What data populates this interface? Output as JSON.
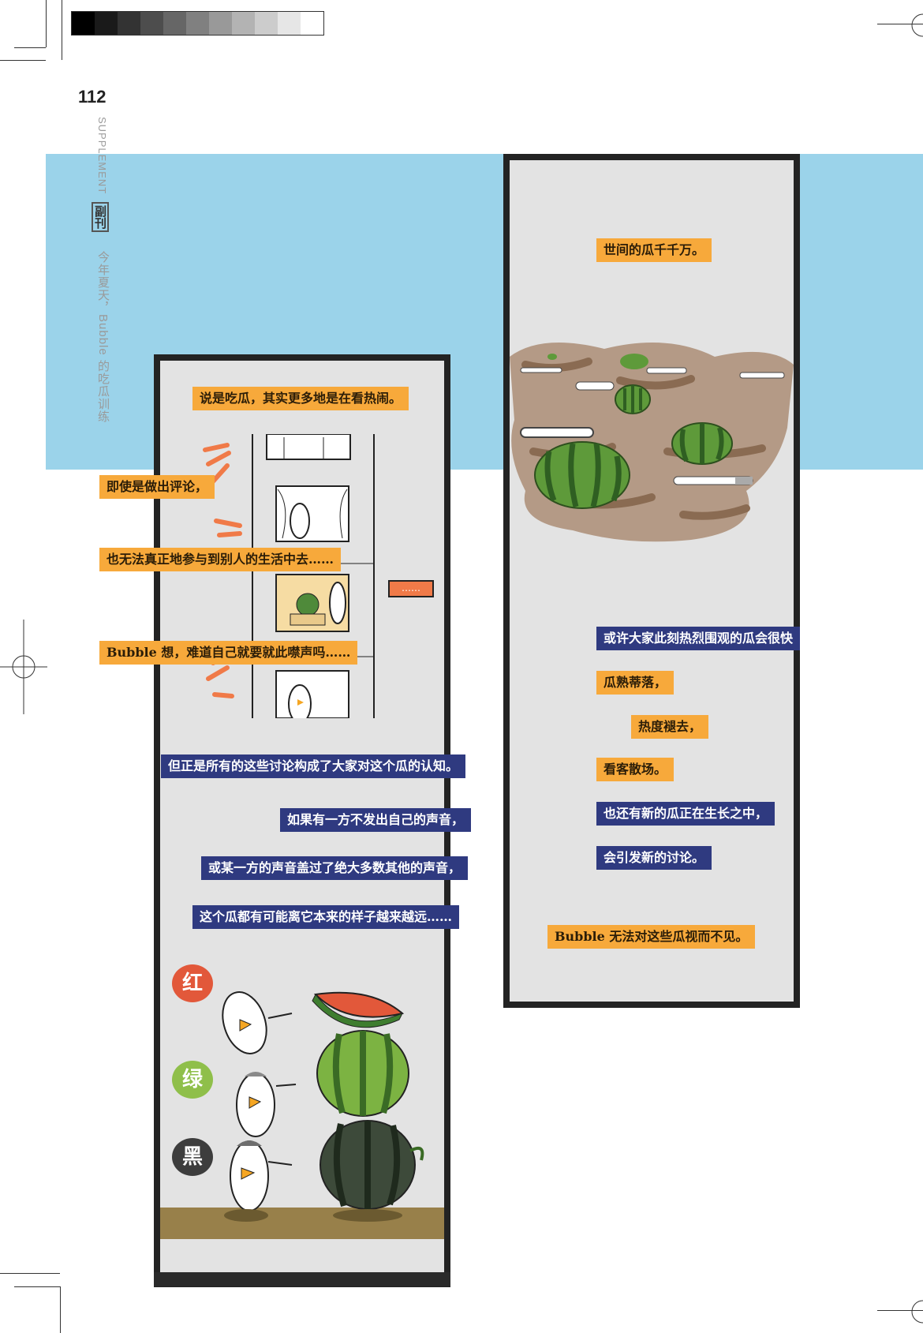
{
  "header": {
    "page_number": "112",
    "section_en": "SUPPLEMENT",
    "section_cn": "副刊",
    "article_title": "今年夏天，Bubble 的吃瓜训练"
  },
  "grayscale_swatches": [
    "#000000",
    "#1a1a1a",
    "#333333",
    "#4d4d4d",
    "#666666",
    "#808080",
    "#999999",
    "#b3b3b3",
    "#cccccc",
    "#e6e6e6",
    "#ffffff"
  ],
  "colors": {
    "blue_band": "#9bd3ea",
    "label_orange": "#f7a93b",
    "label_navy": "#2f3a80",
    "panel_gray": "#e3e3e3"
  },
  "left_panel": {
    "captions_top": "说是吃瓜，其实更多地是在看热闹。",
    "side_captions": [
      "即使是做出评论，",
      "也无法真正地参与到别人的生活中去……",
      "Bubble 想，难道自己就要就此噤声吗……"
    ],
    "speech_bubble": "……",
    "blue_captions": [
      "但正是所有的这些讨论构成了大家对这个瓜的认知。",
      "如果有一方不发出自己的声音，",
      "或某一方的声音盖过了绝大多数其他的声音，",
      "这个瓜都有可能离它本来的样子越来越远……"
    ],
    "color_bubbles": [
      {
        "text": "红",
        "color": "#e2583a"
      },
      {
        "text": "绿",
        "color": "#8fbf4a"
      },
      {
        "text": "黑",
        "color": "#3d3d3d"
      }
    ]
  },
  "right_panel": {
    "caption_top": "世间的瓜千千万。",
    "captions": [
      {
        "text": "或许大家此刻热烈围观的瓜会很快",
        "style": "nv"
      },
      {
        "text": "瓜熟蒂落，",
        "style": "or"
      },
      {
        "text": "热度褪去，",
        "style": "or"
      },
      {
        "text": "看客散场。",
        "style": "or"
      },
      {
        "text": "也还有新的瓜正在生长之中，",
        "style": "nv"
      },
      {
        "text": "会引发新的讨论。",
        "style": "nv"
      }
    ],
    "caption_bottom": "Bubble 无法对这些瓜视而不见。"
  }
}
